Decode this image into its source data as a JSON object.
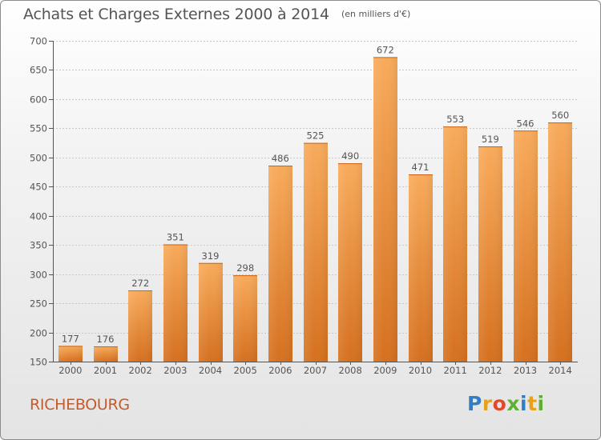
{
  "header": {
    "title": "Achats et Charges Externes 2000 à 2014",
    "subtitle": "(en milliers d'€)"
  },
  "footer": {
    "commune": "RICHEBOURG",
    "logo_letters": [
      "P",
      "r",
      "o",
      "x",
      "i",
      "t",
      "i"
    ]
  },
  "chart_data": {
    "type": "bar",
    "title": "Achats et Charges Externes 2000 à 2014",
    "subtitle": "(en milliers d'€)",
    "categories": [
      "2000",
      "2001",
      "2002",
      "2003",
      "2004",
      "2005",
      "2006",
      "2007",
      "2008",
      "2009",
      "2010",
      "2011",
      "2012",
      "2013",
      "2014"
    ],
    "values": [
      177,
      176,
      272,
      351,
      319,
      298,
      486,
      525,
      490,
      672,
      471,
      553,
      519,
      546,
      560
    ],
    "ylim": [
      150,
      700
    ],
    "yticks": [
      150,
      200,
      250,
      300,
      350,
      400,
      450,
      500,
      550,
      600,
      650,
      700
    ],
    "grid": true,
    "xlabel": "",
    "ylabel": "",
    "colors": {
      "bar_light": "#f6a957",
      "bar_dark": "#d7701d",
      "grid": "#c8c8c8",
      "text": "#555555"
    }
  }
}
